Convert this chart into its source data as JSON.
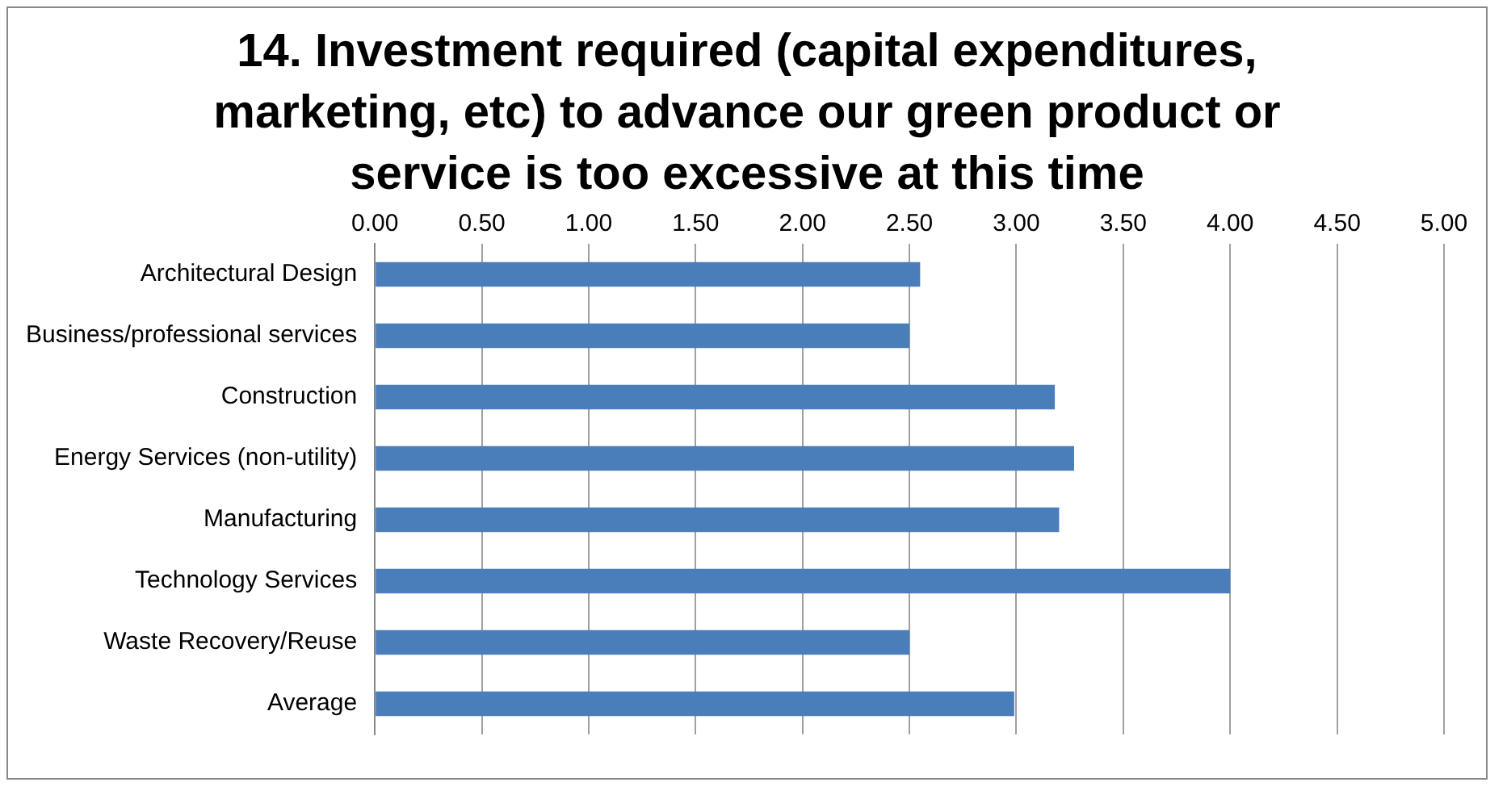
{
  "chart_data": {
    "type": "bar",
    "orientation": "horizontal",
    "title": "14. Investment required (capital expenditures, marketing, etc) to advance our green product or service is too excessive at this time",
    "categories": [
      "Architectural Design",
      "Business/professional services",
      "Construction",
      "Energy Services (non-utility)",
      "Manufacturing",
      "Technology Services",
      "Waste Recovery/Reuse",
      "Average"
    ],
    "values": [
      2.55,
      2.5,
      3.18,
      3.27,
      3.2,
      4.0,
      2.5,
      2.99
    ],
    "color": "#4a7ebb",
    "xlim": [
      0,
      5
    ],
    "xticks": [
      {
        "value": 0,
        "label": "0.00"
      },
      {
        "value": 0.5,
        "label": "0.50"
      },
      {
        "value": 1,
        "label": "1.00"
      },
      {
        "value": 1.5,
        "label": "1.50"
      },
      {
        "value": 2,
        "label": "2.00"
      },
      {
        "value": 2.5,
        "label": "2.50"
      },
      {
        "value": 3,
        "label": "3.00"
      },
      {
        "value": 3.5,
        "label": "3.50"
      },
      {
        "value": 4,
        "label": "4.00"
      },
      {
        "value": 4.5,
        "label": "4.50"
      },
      {
        "value": 5,
        "label": "5.00"
      }
    ],
    "grid": "x",
    "legend": false
  }
}
